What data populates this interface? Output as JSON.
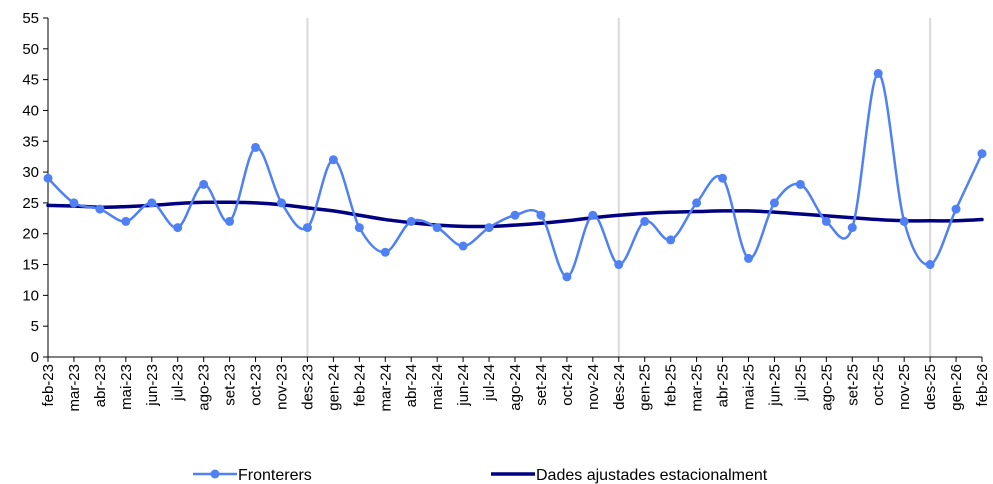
{
  "chart_data": {
    "type": "line",
    "categories": [
      "feb-23",
      "mar-23",
      "abr-23",
      "mai-23",
      "jun-23",
      "jul-23",
      "ago-23",
      "set-23",
      "oct-23",
      "nov-23",
      "des-23",
      "gen-24",
      "feb-24",
      "mar-24",
      "abr-24",
      "mai-24",
      "jun-24",
      "jul-24",
      "ago-24",
      "set-24",
      "oct-24",
      "nov-24",
      "des-24",
      "gen-25",
      "feb-25",
      "mar-25",
      "abr-25",
      "mai-25",
      "jun-25",
      "jul-25",
      "ago-25",
      "set-25",
      "oct-25",
      "nov-25",
      "des-25",
      "gen-26",
      "feb-26"
    ],
    "series": [
      {
        "name": "Fronterers",
        "color": "#4f81f5",
        "marker": "circle",
        "smooth": true,
        "values": [
          29,
          25,
          24,
          22,
          25,
          21,
          28,
          22,
          34,
          25,
          21,
          32,
          21,
          17,
          22,
          21,
          18,
          21,
          23,
          23,
          13,
          23,
          15,
          22,
          19,
          25,
          29,
          16,
          25,
          28,
          22,
          21,
          46,
          22,
          15,
          24,
          33
        ]
      },
      {
        "name": "Dades ajustades estacionalment",
        "color": "#000080",
        "marker": "none",
        "smooth": true,
        "values": [
          24.6,
          24.5,
          24.3,
          24.4,
          24.6,
          24.9,
          25.1,
          25.1,
          25.0,
          24.7,
          24.2,
          23.7,
          23.0,
          22.3,
          21.8,
          21.4,
          21.2,
          21.2,
          21.4,
          21.7,
          22.1,
          22.6,
          23.0,
          23.3,
          23.5,
          23.6,
          23.7,
          23.7,
          23.5,
          23.2,
          22.9,
          22.6,
          22.3,
          22.1,
          22.1,
          22.1,
          22.3
        ]
      }
    ],
    "ylim": [
      0,
      55
    ],
    "yticks": [
      0,
      5,
      10,
      15,
      20,
      25,
      30,
      35,
      40,
      45,
      50,
      55
    ],
    "xlabel": "",
    "ylabel": "",
    "title": "",
    "grid": false,
    "vertical_reference_lines_after": [
      "des-23",
      "des-24",
      "des-25"
    ],
    "legend_position": "bottom"
  }
}
